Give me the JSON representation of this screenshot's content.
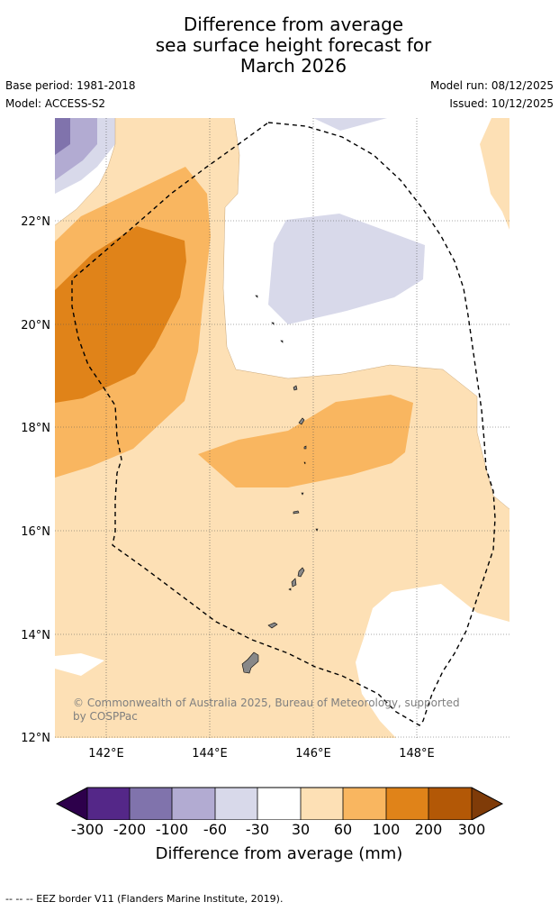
{
  "header": {
    "title_line1": "Difference from average",
    "title_line2": "sea surface height forecast for",
    "title_line3": "March 2026",
    "base_period": "Base period: 1981-2018",
    "model": "Model: ACCESS-S2",
    "model_run": "Model run: 08/12/2025",
    "issued": "Issued: 10/12/2025"
  },
  "map": {
    "lat_labels": [
      "22°N",
      "20°N",
      "18°N",
      "16°N",
      "14°N",
      "12°N"
    ],
    "lon_labels": [
      "142°E",
      "144°E",
      "146°E",
      "148°E"
    ],
    "copyright": "© Commonwealth of Australia 2025, Bureau of Meteorology, supported by COSPPac",
    "copyright_line1": "© Commonwealth of Australia 2025, Bureau of Meteorology, supported",
    "copyright_line2": "by COSPPac",
    "colors": {
      "band_30_60": "#fde0b5",
      "band_60_100": "#f9b660",
      "band_100_200": "#e08319",
      "band_neg30_neg60": "#d8d9ea",
      "band_neg60_neg100": "#b2abd2",
      "band_neg100_neg200": "#8073ac",
      "land": "#888888",
      "eez_line": "#000000"
    }
  },
  "colorbar": {
    "labels": [
      "-300",
      "-200",
      "-100",
      "-60",
      "-30",
      "30",
      "60",
      "100",
      "200",
      "300"
    ],
    "colors": [
      "#2d004b",
      "#542788",
      "#8073ac",
      "#b2abd2",
      "#d8d9ea",
      "#ffffff",
      "#fde0b5",
      "#f9b660",
      "#e08319",
      "#b35806",
      "#7f3b08"
    ],
    "title": "Difference from average (mm)"
  },
  "footer": {
    "legend_text": "--  --  -- EEZ border V11 (Flanders Marine Institute, 2019)."
  }
}
